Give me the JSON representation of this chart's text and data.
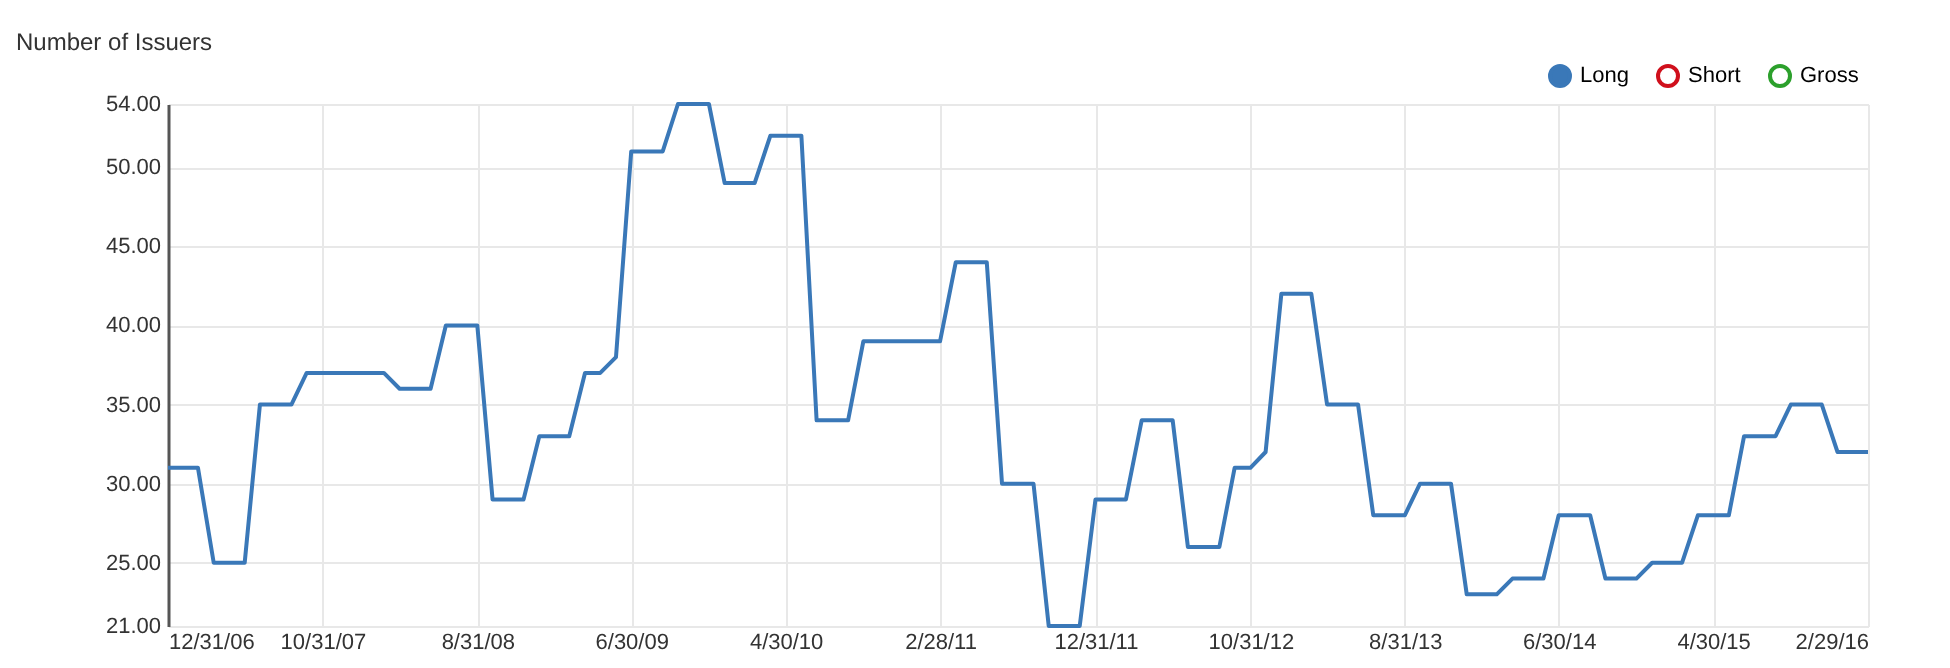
{
  "chart_data": {
    "type": "line",
    "title": "Number of Issuers",
    "x": [
      "2006-12-31",
      "2007-02-28",
      "2007-03-31",
      "2007-05-31",
      "2007-06-30",
      "2007-08-31",
      "2007-09-30",
      "2008-02-29",
      "2008-03-31",
      "2008-05-31",
      "2008-06-30",
      "2008-08-31",
      "2008-09-30",
      "2008-11-30",
      "2008-12-31",
      "2009-02-28",
      "2009-03-31",
      "2009-04-30",
      "2009-05-31",
      "2009-06-30",
      "2009-08-31",
      "2009-09-30",
      "2009-11-30",
      "2009-12-31",
      "2010-02-28",
      "2010-03-31",
      "2010-05-31",
      "2010-06-30",
      "2010-08-31",
      "2010-09-30",
      "2011-02-28",
      "2011-03-31",
      "2011-05-31",
      "2011-06-30",
      "2011-08-31",
      "2011-09-30",
      "2011-11-30",
      "2011-12-31",
      "2012-02-29",
      "2012-03-31",
      "2012-05-31",
      "2012-06-30",
      "2012-08-31",
      "2012-09-30",
      "2012-10-31",
      "2012-11-30",
      "2012-12-31",
      "2013-02-28",
      "2013-03-31",
      "2013-05-31",
      "2013-06-30",
      "2013-08-31",
      "2013-09-30",
      "2013-11-30",
      "2013-12-31",
      "2014-02-28",
      "2014-03-31",
      "2014-05-31",
      "2014-06-30",
      "2014-08-31",
      "2014-09-30",
      "2014-11-30",
      "2014-12-31",
      "2015-02-28",
      "2015-03-31",
      "2015-05-31",
      "2015-06-30",
      "2015-08-31",
      "2015-09-30",
      "2015-11-30",
      "2015-12-31",
      "2016-02-29"
    ],
    "series": [
      {
        "name": "Long",
        "color": "#3a78b8",
        "values": [
          31,
          31,
          25,
          25,
          35,
          35,
          37,
          37,
          36,
          36,
          40,
          40,
          29,
          29,
          33,
          33,
          37,
          37,
          38,
          51,
          51,
          54,
          54,
          49,
          49,
          52,
          52,
          34,
          34,
          39,
          39,
          44,
          44,
          30,
          30,
          21,
          21,
          29,
          29,
          34,
          34,
          26,
          26,
          31,
          31,
          32,
          42,
          42,
          35,
          35,
          28,
          28,
          30,
          30,
          23,
          23,
          24,
          24,
          28,
          28,
          24,
          24,
          25,
          25,
          28,
          28,
          33,
          33,
          35,
          35,
          32,
          32
        ]
      },
      {
        "name": "Short",
        "color": "#d0101c",
        "values": [
          null,
          null,
          null,
          null,
          null,
          null,
          null,
          null,
          null,
          null,
          null,
          null,
          null,
          null,
          null,
          null,
          null,
          null,
          null,
          null,
          null,
          null,
          null,
          null,
          null,
          null,
          null,
          null,
          null,
          null,
          null,
          null,
          null,
          null,
          null,
          null,
          null,
          null,
          null,
          null,
          null,
          null,
          null,
          null,
          null,
          null,
          null,
          null,
          null,
          null,
          null,
          null,
          null,
          null,
          null,
          null,
          null,
          null,
          null,
          null,
          null,
          null,
          null,
          null,
          null,
          null,
          null,
          null,
          null,
          null,
          null,
          null
        ]
      },
      {
        "name": "Gross",
        "color": "#2ca02c",
        "values": [
          null,
          null,
          null,
          null,
          null,
          null,
          null,
          null,
          null,
          null,
          null,
          null,
          null,
          null,
          null,
          null,
          null,
          null,
          null,
          null,
          null,
          null,
          null,
          null,
          null,
          null,
          null,
          null,
          null,
          null,
          null,
          null,
          null,
          null,
          null,
          null,
          null,
          null,
          null,
          null,
          null,
          null,
          null,
          null,
          null,
          null,
          null,
          null,
          null,
          null,
          null,
          null,
          null,
          null,
          null,
          null,
          null,
          null,
          null,
          null,
          null,
          null,
          null,
          null,
          null,
          null,
          null,
          null,
          null,
          null,
          null,
          null
        ]
      }
    ],
    "xlim": [
      "2006-12-31",
      "2016-02-29"
    ],
    "xticks": [
      {
        "value": "2006-12-31",
        "label": "12/31/06"
      },
      {
        "value": "2007-10-31",
        "label": "10/31/07"
      },
      {
        "value": "2008-08-31",
        "label": "8/31/08"
      },
      {
        "value": "2009-06-30",
        "label": "6/30/09"
      },
      {
        "value": "2010-04-30",
        "label": "4/30/10"
      },
      {
        "value": "2011-02-28",
        "label": "2/28/11"
      },
      {
        "value": "2011-12-31",
        "label": "12/31/11"
      },
      {
        "value": "2012-10-31",
        "label": "10/31/12"
      },
      {
        "value": "2013-08-31",
        "label": "8/31/13"
      },
      {
        "value": "2014-06-30",
        "label": "6/30/14"
      },
      {
        "value": "2015-04-30",
        "label": "4/30/15"
      },
      {
        "value": "2016-02-29",
        "label": "2/29/16"
      }
    ],
    "ylim": [
      21,
      54
    ],
    "yticks": [
      {
        "value": 21,
        "label": "21.00"
      },
      {
        "value": 25,
        "label": "25.00"
      },
      {
        "value": 30,
        "label": "30.00"
      },
      {
        "value": 35,
        "label": "35.00"
      },
      {
        "value": 40,
        "label": "40.00"
      },
      {
        "value": 45,
        "label": "45.00"
      },
      {
        "value": 50,
        "label": "50.00"
      },
      {
        "value": 54,
        "label": "54.00"
      }
    ],
    "grid": true,
    "legend": "top right",
    "marker": "none",
    "line_style": "solid"
  }
}
